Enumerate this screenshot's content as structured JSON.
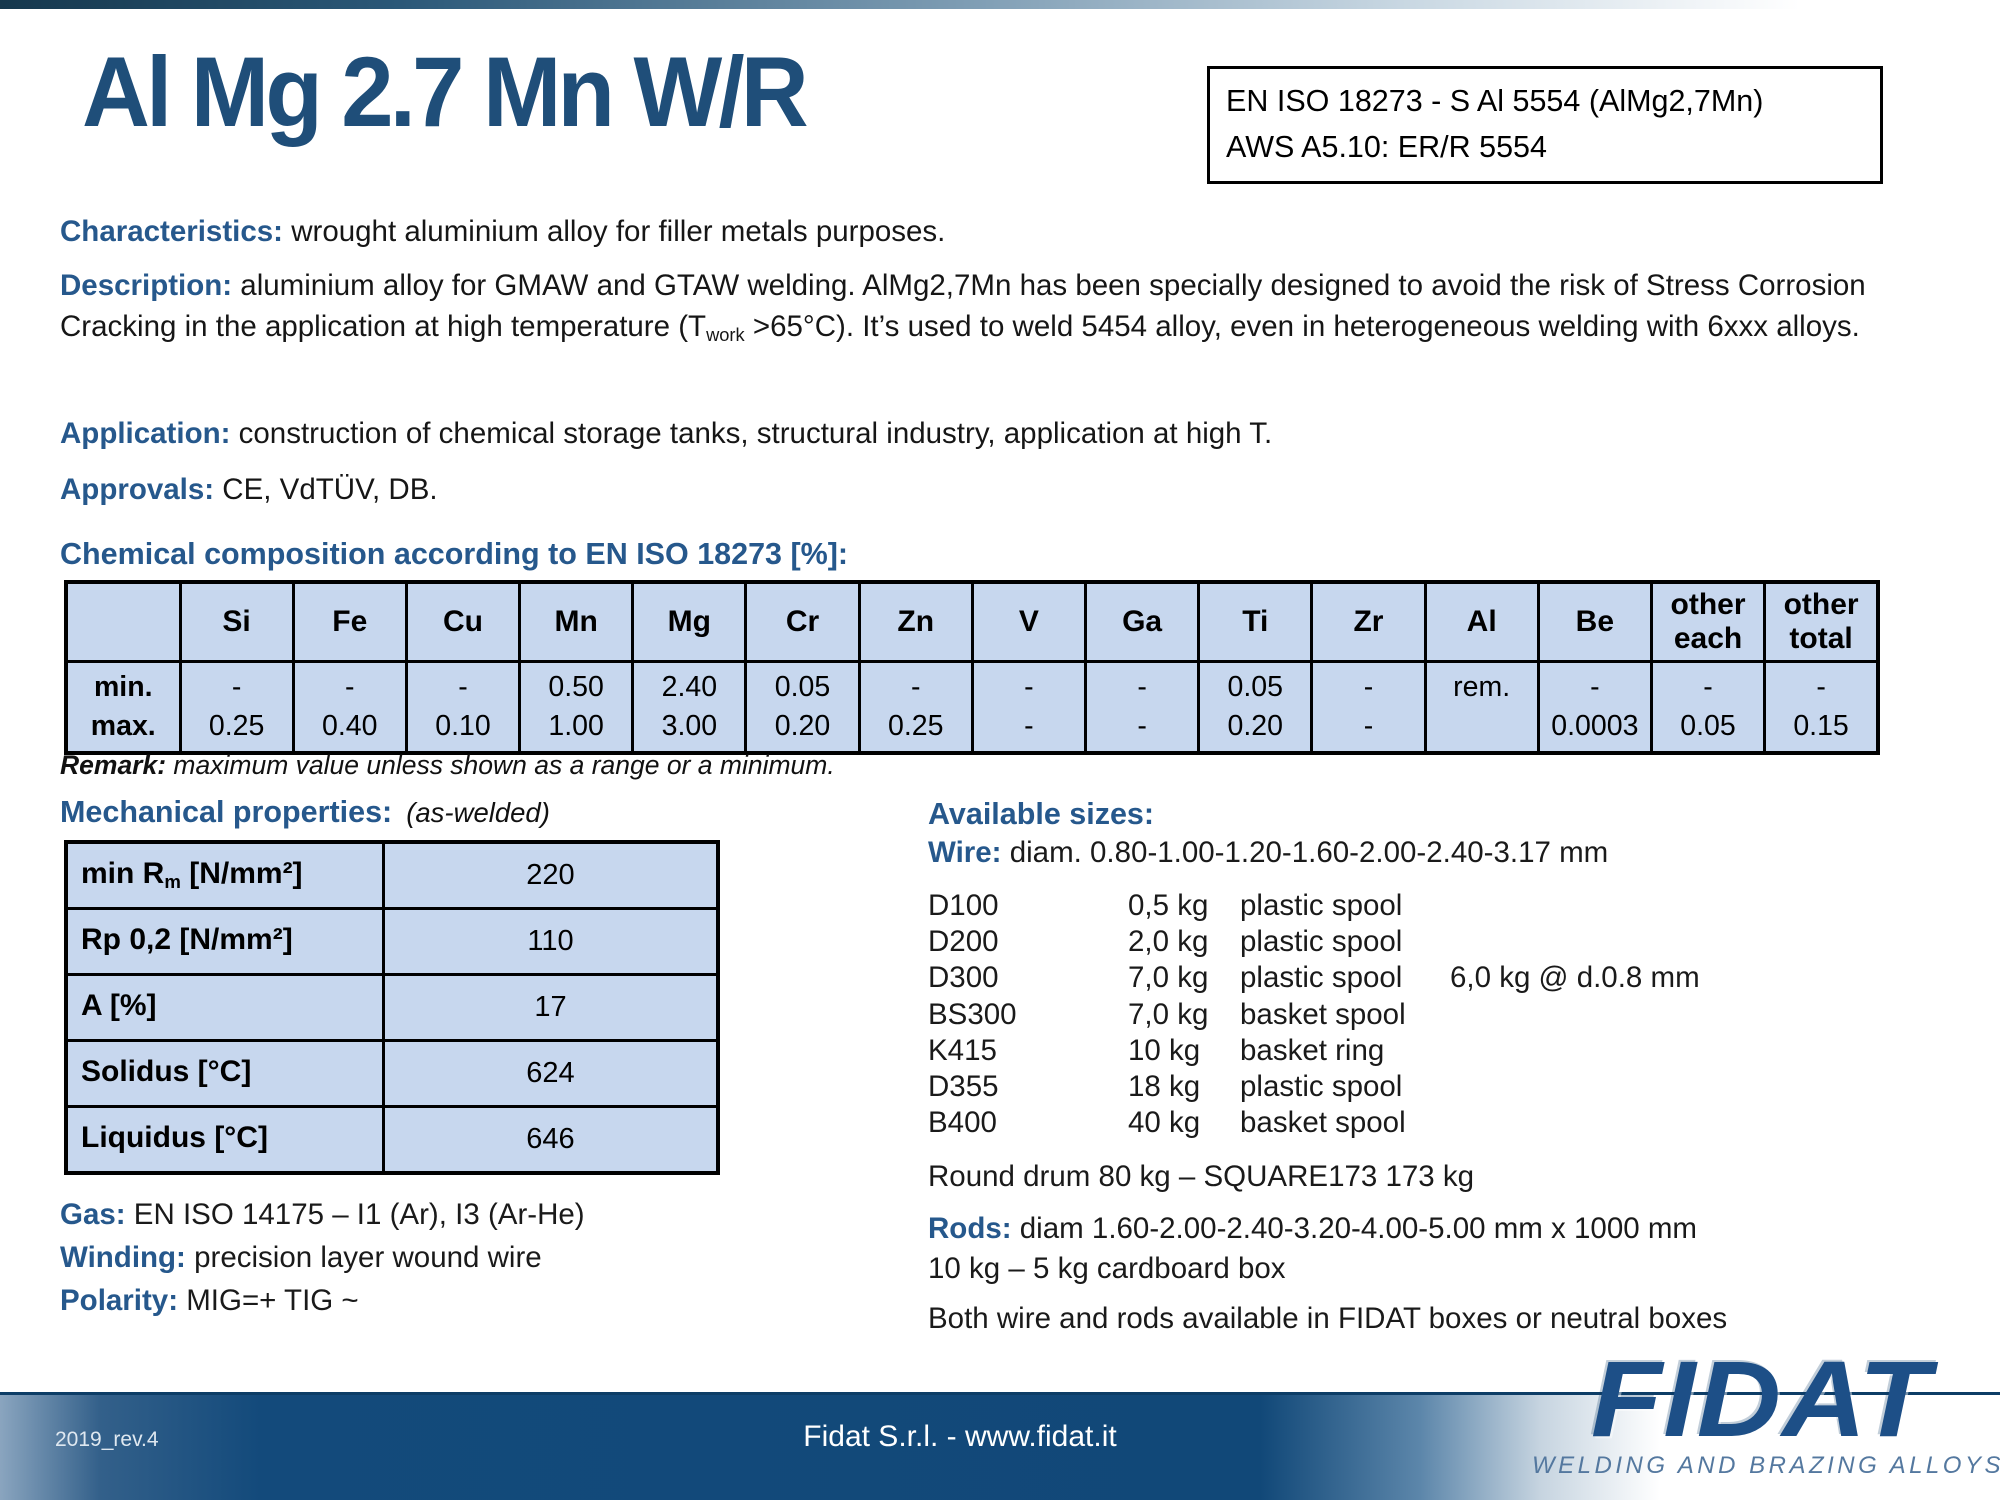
{
  "page": {
    "title": "Al Mg 2.7 Mn W/R"
  },
  "standards_box": {
    "line1": "EN ISO 18273  -  S Al 5554 (AlMg2,7Mn)",
    "line2": "AWS A5.10: ER/R 5554"
  },
  "characteristics": {
    "label": "Characteristics:",
    "text": " wrought aluminium alloy for filler metals purposes."
  },
  "description": {
    "label": "Description:",
    "t1": " aluminium alloy for GMAW and GTAW welding. AlMg2,7Mn has been specially designed to avoid the risk of Stress Corrosion Cracking in the application at high temperature (T",
    "sub": "work",
    "t2": " >65°C).  It’s used to weld 5454 alloy, even in heterogeneous  welding with 6xxx alloys."
  },
  "application": {
    "label": "Application:",
    "text": " construction of chemical storage tanks, structural industry, application at high T."
  },
  "approvals": {
    "label": "Approvals:",
    "text": " CE, VdTÜV, DB."
  },
  "chem": {
    "heading": "Chemical composition according to EN ISO 18273 [%]:",
    "columns": [
      "",
      "Si",
      "Fe",
      "Cu",
      "Mn",
      "Mg",
      "Cr",
      "Zn",
      "V",
      "Ga",
      "Ti",
      "Zr",
      "Al",
      "Be",
      "other\neach",
      "other\ntotal"
    ],
    "min": [
      "min.",
      "-",
      "-",
      "-",
      "0.50",
      "2.40",
      "0.05",
      "-",
      "-",
      "-",
      "0.05",
      "-",
      "rem.",
      "-",
      "-",
      "-"
    ],
    "max": [
      "max.",
      "0.25",
      "0.40",
      "0.10",
      "1.00",
      "3.00",
      "0.20",
      "0.25",
      "-",
      "-",
      "0.20",
      "-",
      "",
      "0.0003",
      "0.05",
      "0.15"
    ],
    "remark_label": "Remark:",
    "remark_text": " maximum value unless shown as a range or a minimum."
  },
  "mech": {
    "heading": "Mechanical properties:",
    "note": "(as-welded)",
    "rows": [
      {
        "pre": "min R",
        "sub": "m",
        "post": " [N/mm²]",
        "value": "220"
      },
      {
        "pre": "Rp 0,2  [N/mm²]",
        "sub": "",
        "post": "",
        "value": "110"
      },
      {
        "pre": "A   [%]",
        "sub": "",
        "post": "",
        "value": "17"
      },
      {
        "pre": "Solidus  [°C]",
        "sub": "",
        "post": "",
        "value": "624"
      },
      {
        "pre": "Liquidus   [°C]",
        "sub": "",
        "post": "",
        "value": "646"
      }
    ]
  },
  "gas": {
    "label": "Gas:",
    "text": " EN ISO 14175 – I1 (Ar), I3 (Ar-He)"
  },
  "winding": {
    "label": "Winding:",
    "text": "  precision layer wound wire"
  },
  "polarity": {
    "label": "Polarity:",
    "text": " MIG=+  TIG ~"
  },
  "available": {
    "heading": "Available sizes:",
    "wire_label": "Wire:",
    "wire_text": " diam. 0.80-1.00-1.20-1.60-2.00-2.40-3.17  mm",
    "spools": [
      {
        "code": "D100",
        "weight": "0,5 kg",
        "type": "plastic spool",
        "note": ""
      },
      {
        "code": "D200",
        "weight": "2,0 kg",
        "type": "plastic spool",
        "note": ""
      },
      {
        "code": "D300",
        "weight": "7,0 kg",
        "type": "plastic spool",
        "note": "6,0 kg @ d.0.8 mm"
      },
      {
        "code": "BS300",
        "weight": "7,0 kg",
        "type": "basket spool",
        "note": ""
      },
      {
        "code": "K415",
        "weight": "10 kg",
        "type": "basket ring",
        "note": ""
      },
      {
        "code": "D355",
        "weight": "18 kg",
        "type": "plastic spool",
        "note": ""
      },
      {
        "code": "B400",
        "weight": "40 kg",
        "type": "basket spool",
        "note": ""
      }
    ],
    "drum_line": "Round drum 80 kg   –   SQUARE173 173 kg",
    "rods_label": "Rods:",
    "rods_text": " diam 1.60-2.00-2.40-3.20-4.00-5.00 mm x 1000 mm",
    "rods_line2": "10 kg – 5 kg  cardboard box",
    "both_line": "Both wire and rods available in FIDAT boxes or neutral boxes"
  },
  "footer": {
    "revision": "2019_rev.4",
    "center": "Fidat S.r.l. - www.fidat.it",
    "logo": "FIDAT",
    "logo_subtitle": "WELDING AND BRAZING ALLOYS"
  },
  "colors": {
    "title_blue": "#1F4E79",
    "heading_blue": "#26588C",
    "table_fill": "#C7D7EE",
    "footer_navy": "#114878",
    "logo_blue": "#1D4F87"
  }
}
